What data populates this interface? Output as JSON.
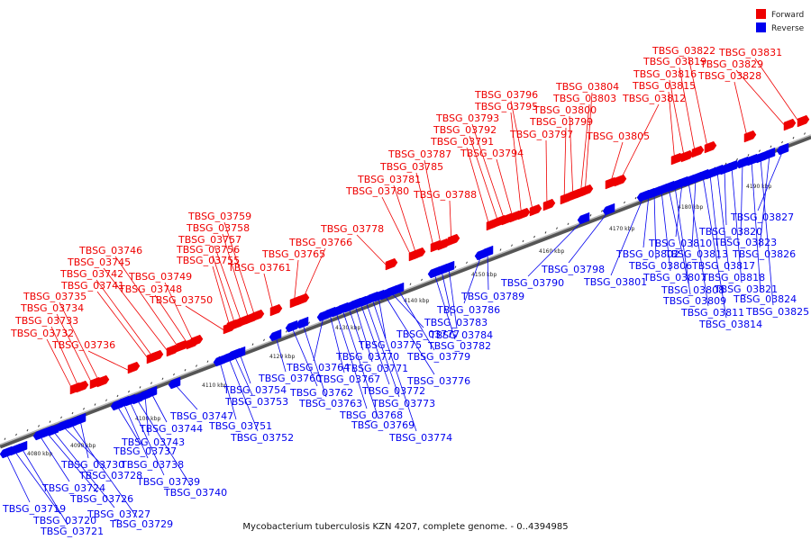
{
  "legend": {
    "items": [
      {
        "label": "Forward",
        "color": "#ee0000"
      },
      {
        "label": "Reverse",
        "color": "#0000ee"
      }
    ]
  },
  "caption": "Mycobacterium tuberculosis KZN 4207, complete genome. - 0..4394985",
  "colors": {
    "forward": "#ee0000",
    "reverse": "#0000ee",
    "backbone": "#888888",
    "tick": "#222222"
  },
  "ruler": {
    "ticks": [
      "4080 kbp",
      "4090 kbp",
      "4100 kbp",
      "4110 kbp",
      "4120 kbp",
      "4130 kbp",
      "4140 kbp",
      "4150 kbp",
      "4160 kbp",
      "4170 kbp",
      "4180 kbp",
      "4190 kbp"
    ]
  },
  "genes": {
    "forward": [
      "TBSG_03732",
      "TBSG_03733",
      "TBSG_03734",
      "TBSG_03735",
      "TBSG_03736",
      "TBSG_03741",
      "TBSG_03742",
      "TBSG_03745",
      "TBSG_03746",
      "TBSG_03748",
      "TBSG_03749",
      "TBSG_03750",
      "TBSG_03755",
      "TBSG_03756",
      "TBSG_03757",
      "TBSG_03758",
      "TBSG_03759",
      "TBSG_03761",
      "TBSG_03765",
      "TBSG_03766",
      "TBSG_03778",
      "TBSG_03780",
      "TBSG_03781",
      "TBSG_03785",
      "TBSG_03787",
      "TBSG_03788",
      "TBSG_03791",
      "TBSG_03792",
      "TBSG_03793",
      "TBSG_03794",
      "TBSG_03795",
      "TBSG_03796",
      "TBSG_03797",
      "TBSG_03799",
      "TBSG_03800",
      "TBSG_03803",
      "TBSG_03804",
      "TBSG_03805",
      "TBSG_03812",
      "TBSG_03815",
      "TBSG_03816",
      "TBSG_03819",
      "TBSG_03822",
      "TBSG_03828",
      "TBSG_03829",
      "TBSG_03831"
    ],
    "reverse": [
      "TBSG_03719",
      "TBSG_03720",
      "TBSG_03721",
      "TBSG_03724",
      "TBSG_03726",
      "TBSG_03727",
      "TBSG_03728",
      "TBSG_03729",
      "TBSG_03730",
      "TBSG_03737",
      "TBSG_03738",
      "TBSG_03739",
      "TBSG_03740",
      "TBSG_03743",
      "TBSG_03744",
      "TBSG_03747",
      "TBSG_03751",
      "TBSG_03752",
      "TBSG_03753",
      "TBSG_03754",
      "TBSG_03760",
      "TBSG_03762",
      "TBSG_03763",
      "TBSG_03764",
      "TBSG_03767",
      "TBSG_03768",
      "TBSG_03769",
      "TBSG_03770",
      "TBSG_03771",
      "TBSG_03772",
      "TBSG_03773",
      "TBSG_03774",
      "TBSG_03775",
      "TBSG_03776",
      "TBSG_03777",
      "TBSG_03779",
      "TBSG_03782",
      "TBSG_03783",
      "TBSG_03784",
      "TBSG_03786",
      "TBSG_03789",
      "TBSG_03790",
      "TBSG_03798",
      "TBSG_03801",
      "TBSG_03802",
      "TBSG_03806",
      "TBSG_03807",
      "TBSG_03808",
      "TBSG_03809",
      "TBSG_03810",
      "TBSG_03811",
      "TBSG_03813",
      "TBSG_03814",
      "TBSG_03817",
      "TBSG_03818",
      "TBSG_03820",
      "TBSG_03821",
      "TBSG_03823",
      "TBSG_03824",
      "TBSG_03825",
      "TBSG_03826",
      "TBSG_03827"
    ]
  }
}
